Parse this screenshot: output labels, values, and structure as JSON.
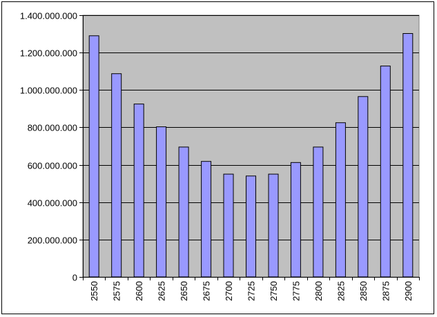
{
  "chart_data": {
    "type": "bar",
    "categories": [
      "2550",
      "2575",
      "2600",
      "2625",
      "2650",
      "2675",
      "2700",
      "2725",
      "2750",
      "2775",
      "2800",
      "2825",
      "2850",
      "2875",
      "2900"
    ],
    "values": [
      1290000000,
      1087000000,
      925000000,
      803000000,
      695000000,
      618000000,
      550000000,
      540000000,
      550000000,
      612000000,
      695000000,
      825000000,
      965000000,
      1128000000,
      1302000000
    ],
    "ylim": [
      0,
      1400000000
    ],
    "y_ticks": [
      "0",
      "200.000.000",
      "400.000.000",
      "600.000.000",
      "800.000.000",
      "1.000.000.000",
      "1.200.000.000",
      "1.400.000.000"
    ],
    "title": "",
    "xlabel": "",
    "ylabel": "",
    "grid": true,
    "legend": "none",
    "colors": {
      "bar_fill": "#9999ff",
      "bar_stroke": "#000000",
      "plot_bg": "#c0c0c0",
      "grid": "#000000"
    }
  }
}
